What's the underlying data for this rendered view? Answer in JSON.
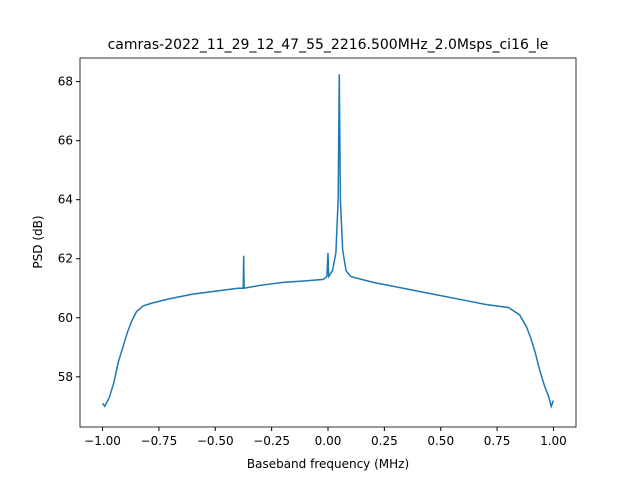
{
  "chart_data": {
    "type": "line",
    "title": "camras-2022_11_29_12_47_55_2216.500MHz_2.0Msps_ci16_le",
    "x_label": "Baseband frequency (MHz)",
    "y_label": "PSD (dB)",
    "x": [
      -1.0,
      -0.99,
      -0.97,
      -0.95,
      -0.93,
      -0.91,
      -0.89,
      -0.87,
      -0.85,
      -0.82,
      -0.78,
      -0.7,
      -0.6,
      -0.5,
      -0.4,
      -0.376,
      -0.374,
      -0.372,
      -0.3,
      -0.2,
      -0.1,
      -0.02,
      -0.005,
      0.0,
      0.003,
      0.02,
      0.035,
      0.045,
      0.05,
      0.055,
      0.065,
      0.08,
      0.1,
      0.2,
      0.3,
      0.4,
      0.5,
      0.6,
      0.7,
      0.8,
      0.85,
      0.88,
      0.9,
      0.92,
      0.94,
      0.96,
      0.98,
      0.99,
      1.0
    ],
    "series": [
      {
        "color": "#1f77b4",
        "values": [
          57.1,
          57.0,
          57.3,
          57.8,
          58.5,
          59.0,
          59.5,
          59.9,
          60.2,
          60.4,
          60.5,
          60.65,
          60.8,
          60.9,
          61.0,
          61.0,
          62.1,
          61.0,
          61.1,
          61.2,
          61.25,
          61.3,
          61.4,
          62.2,
          61.4,
          61.6,
          62.2,
          64.0,
          68.25,
          64.0,
          62.3,
          61.6,
          61.4,
          61.2,
          61.05,
          60.9,
          60.75,
          60.6,
          60.45,
          60.35,
          60.1,
          59.7,
          59.3,
          58.8,
          58.2,
          57.7,
          57.3,
          57.0,
          57.2
        ]
      }
    ],
    "xlim": [
      -1.1,
      1.1
    ],
    "ylim": [
      56.3,
      68.8
    ],
    "xticks": [
      {
        "value": -1,
        "label": "−1.00"
      },
      {
        "value": -0.75,
        "label": "−0.75"
      },
      {
        "value": -0.5,
        "label": "−0.50"
      },
      {
        "value": -0.25,
        "label": "−0.25"
      },
      {
        "value": 0,
        "label": "0.00"
      },
      {
        "value": 0.25,
        "label": "0.25"
      },
      {
        "value": 0.5,
        "label": "0.50"
      },
      {
        "value": 0.75,
        "label": "0.75"
      },
      {
        "value": 1,
        "label": "1.00"
      }
    ],
    "yticks": [
      58,
      60,
      62,
      64,
      66,
      68
    ]
  }
}
